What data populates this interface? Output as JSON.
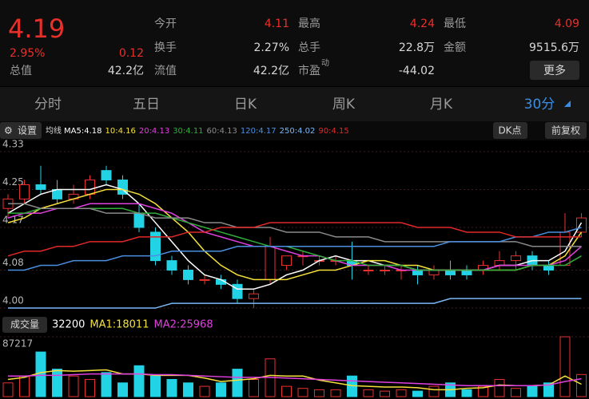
{
  "header": {
    "price": 4.19,
    "change_pct": "2.95%",
    "change": 0.12,
    "open_label": "今开",
    "open": 4.11,
    "high_label": "最高",
    "high": 4.24,
    "low_label": "最低",
    "low": 4.09,
    "turnover_label": "换手",
    "turnover": "2.27%",
    "volume_label": "总手",
    "volume": "22.8万",
    "amount_label": "金额",
    "amount": "9515.6万",
    "mcap_label": "总值",
    "mcap": "42.2亿",
    "float_label": "流值",
    "float": "42.2亿",
    "pe_label": "市盈",
    "pe_sup": "动",
    "pe": -44.02,
    "more": "更多"
  },
  "tabs": [
    "分时",
    "五日",
    "日K",
    "周K",
    "月K",
    "30分"
  ],
  "toolbar": {
    "settings": "设置",
    "ma_title": "均线",
    "dk": "DK点",
    "adjust": "前复权",
    "volume_button": "成交量"
  },
  "chart_data": [
    {
      "type": "candlestick",
      "ylim": [
        3.99,
        4.35
      ],
      "yticks": [
        {
          "value": 4.0,
          "label": "4.00"
        },
        {
          "value": 4.08,
          "label": "4.08"
        },
        4.17,
        4.25,
        4.33
      ],
      "grid": true,
      "up_color": "#e8312f",
      "down_color": "#22d3e6",
      "open": [
        4.21,
        4.23,
        4.26,
        4.25,
        4.23,
        4.24,
        4.29,
        4.27,
        4.2,
        4.16,
        4.1,
        4.08,
        4.06,
        4.06,
        4.05,
        4.02,
        4.06,
        4.09,
        4.11,
        4.1,
        4.1,
        4.1,
        4.08,
        4.08,
        4.08,
        4.08,
        4.07,
        4.08,
        4.08,
        4.08,
        4.09,
        4.1,
        4.11,
        4.09,
        4.09,
        4.16
      ],
      "high": [
        4.24,
        4.27,
        4.3,
        4.27,
        4.26,
        4.28,
        4.3,
        4.28,
        4.22,
        4.17,
        4.11,
        4.09,
        4.07,
        4.07,
        4.06,
        4.04,
        4.15,
        4.11,
        4.12,
        4.11,
        4.11,
        4.14,
        4.09,
        4.09,
        4.09,
        4.09,
        4.09,
        4.1,
        4.09,
        4.1,
        4.12,
        4.12,
        4.12,
        4.1,
        4.2,
        4.2
      ],
      "low": [
        4.19,
        4.22,
        4.24,
        4.22,
        4.22,
        4.23,
        4.26,
        4.23,
        4.16,
        4.09,
        4.07,
        4.05,
        4.05,
        4.04,
        4.01,
        4.0,
        4.05,
        4.08,
        4.09,
        4.09,
        4.09,
        4.06,
        4.07,
        4.07,
        4.06,
        4.05,
        4.06,
        4.06,
        4.06,
        4.07,
        4.08,
        4.08,
        4.08,
        4.07,
        4.09,
        4.15
      ],
      "close": [
        4.23,
        4.26,
        4.25,
        4.23,
        4.24,
        4.27,
        4.27,
        4.24,
        4.17,
        4.1,
        4.08,
        4.06,
        4.06,
        4.05,
        4.02,
        4.03,
        4.13,
        4.11,
        4.11,
        4.1,
        4.1,
        4.09,
        4.08,
        4.08,
        4.08,
        4.07,
        4.08,
        4.07,
        4.07,
        4.09,
        4.1,
        4.11,
        4.09,
        4.08,
        4.16,
        4.19
      ],
      "lines": [
        {
          "legend": "MA5:4.18",
          "color": "#ffffff",
          "values": [
            4.2,
            4.22,
            4.24,
            4.25,
            4.25,
            4.25,
            4.26,
            4.25,
            4.22,
            4.18,
            4.14,
            4.1,
            4.07,
            4.06,
            4.04,
            4.04,
            4.05,
            4.07,
            4.08,
            4.1,
            4.11,
            4.1,
            4.1,
            4.09,
            4.09,
            4.08,
            4.08,
            4.08,
            4.08,
            4.08,
            4.09,
            4.09,
            4.1,
            4.1,
            4.12,
            4.18
          ]
        },
        {
          "legend": "10:4.16",
          "color": "#f5e13a",
          "values": [
            4.18,
            4.19,
            4.21,
            4.22,
            4.23,
            4.24,
            4.25,
            4.25,
            4.24,
            4.22,
            4.19,
            4.16,
            4.12,
            4.09,
            4.07,
            4.06,
            4.06,
            4.06,
            4.07,
            4.08,
            4.08,
            4.09,
            4.1,
            4.1,
            4.09,
            4.09,
            4.08,
            4.08,
            4.08,
            4.08,
            4.08,
            4.08,
            4.09,
            4.09,
            4.11,
            4.16
          ]
        },
        {
          "legend": "20:4.13",
          "color": "#e040e0",
          "values": [
            4.19,
            4.2,
            4.2,
            4.21,
            4.21,
            4.22,
            4.22,
            4.22,
            4.22,
            4.21,
            4.2,
            4.18,
            4.16,
            4.15,
            4.14,
            4.13,
            4.13,
            4.12,
            4.11,
            4.11,
            4.1,
            4.09,
            4.09,
            4.09,
            4.08,
            4.08,
            4.08,
            4.08,
            4.08,
            4.08,
            4.09,
            4.09,
            4.09,
            4.09,
            4.1,
            4.13
          ]
        },
        {
          "legend": "30:4.11",
          "color": "#2fae3a",
          "values": [
            4.2,
            4.2,
            4.21,
            4.21,
            4.21,
            4.21,
            4.21,
            4.21,
            4.2,
            4.2,
            4.19,
            4.18,
            4.17,
            4.16,
            4.15,
            4.14,
            4.13,
            4.13,
            4.12,
            4.11,
            4.1,
            4.1,
            4.09,
            4.09,
            4.09,
            4.08,
            4.08,
            4.08,
            4.08,
            4.08,
            4.08,
            4.08,
            4.09,
            4.09,
            4.09,
            4.11
          ]
        },
        {
          "legend": "60:4.13",
          "color": "#8a8a8a",
          "values": [
            4.22,
            4.22,
            4.21,
            4.21,
            4.21,
            4.21,
            4.2,
            4.2,
            4.2,
            4.19,
            4.19,
            4.19,
            4.18,
            4.18,
            4.17,
            4.17,
            4.17,
            4.16,
            4.16,
            4.16,
            4.15,
            4.15,
            4.15,
            4.14,
            4.14,
            4.14,
            4.14,
            4.14,
            4.14,
            4.14,
            4.14,
            4.14,
            4.13,
            4.13,
            4.13,
            4.13
          ]
        },
        {
          "legend": "120:4.17",
          "color": "#4a8fe0",
          "values": [
            4.08,
            4.08,
            4.09,
            4.09,
            4.1,
            4.1,
            4.1,
            4.11,
            4.11,
            4.11,
            4.12,
            4.12,
            4.12,
            4.12,
            4.13,
            4.13,
            4.13,
            4.13,
            4.13,
            4.13,
            4.13,
            4.13,
            4.13,
            4.13,
            4.13,
            4.13,
            4.13,
            4.14,
            4.14,
            4.14,
            4.14,
            4.15,
            4.15,
            4.16,
            4.16,
            4.17
          ]
        },
        {
          "legend": "250:4.02",
          "color": "#7ab8f5",
          "values": [
            4.0,
            4.0,
            4.0,
            4.0,
            4.0,
            4.0,
            4.0,
            4.0,
            4.0,
            4.0,
            4.01,
            4.01,
            4.01,
            4.01,
            4.01,
            4.01,
            4.01,
            4.01,
            4.01,
            4.01,
            4.01,
            4.01,
            4.01,
            4.01,
            4.01,
            4.01,
            4.01,
            4.02,
            4.02,
            4.02,
            4.02,
            4.02,
            4.02,
            4.02,
            4.02,
            4.02
          ]
        },
        {
          "legend": "90:4.15",
          "color": "#e02828",
          "values": [
            4.11,
            4.12,
            4.12,
            4.13,
            4.13,
            4.14,
            4.14,
            4.14,
            4.15,
            4.15,
            4.15,
            4.16,
            4.16,
            4.17,
            4.17,
            4.17,
            4.18,
            4.18,
            4.18,
            4.18,
            4.18,
            4.18,
            4.18,
            4.18,
            4.18,
            4.17,
            4.17,
            4.17,
            4.16,
            4.16,
            4.16,
            4.15,
            4.15,
            4.15,
            4.15,
            4.15
          ]
        }
      ]
    },
    {
      "type": "bar",
      "ylim": [
        0,
        87217
      ],
      "yticks": [
        87217
      ],
      "values": [
        20000,
        30000,
        65000,
        40000,
        30000,
        25000,
        35000,
        20000,
        45000,
        30000,
        25000,
        20000,
        15000,
        20000,
        40000,
        25000,
        55000,
        15000,
        12000,
        10000,
        10000,
        30000,
        10000,
        8000,
        10000,
        8000,
        15000,
        20000,
        10000,
        15000,
        25000,
        12000,
        15000,
        20000,
        87217,
        32200
      ],
      "lines": [
        {
          "legend": "MA1:18011",
          "color": "#f5e13a",
          "values": [
            25000,
            28000,
            35000,
            38000,
            37000,
            38000,
            39000,
            33000,
            33000,
            31000,
            31000,
            31000,
            27000,
            22000,
            24000,
            26000,
            31000,
            30000,
            30000,
            24000,
            20000,
            16000,
            15000,
            14000,
            14000,
            13000,
            10000,
            10000,
            12000,
            13000,
            17000,
            16000,
            16000,
            17000,
            30000,
            18011
          ]
        },
        {
          "legend": "MA2:25968",
          "color": "#e040e0",
          "values": [
            30000,
            30000,
            31000,
            31000,
            32000,
            33000,
            33000,
            33000,
            33000,
            32000,
            32000,
            31000,
            30000,
            29000,
            28000,
            28000,
            28000,
            27000,
            26000,
            25000,
            24000,
            23000,
            22000,
            21000,
            20000,
            19000,
            18000,
            17000,
            16000,
            16000,
            16000,
            16000,
            16000,
            17000,
            22000,
            25968
          ]
        }
      ]
    }
  ]
}
